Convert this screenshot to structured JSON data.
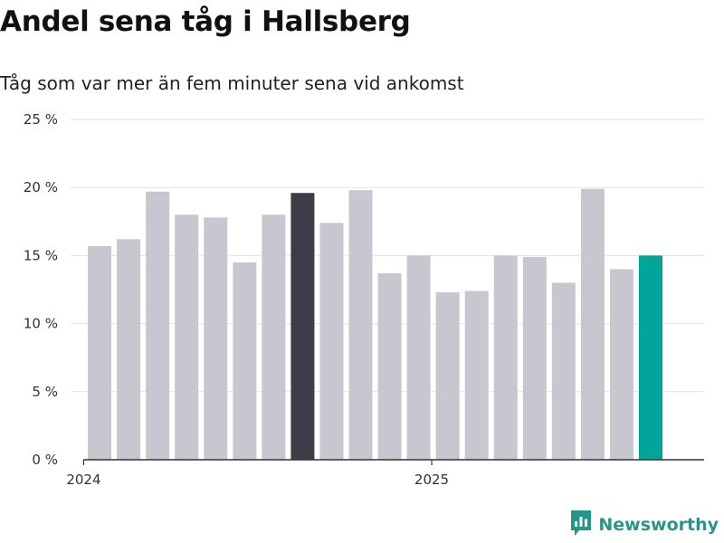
{
  "header": {
    "title": "Andel sena tåg i Hallsberg",
    "subtitle": "Tåg som var mer än fem minuter sena vid ankomst"
  },
  "brand": {
    "name": "Newsworthy",
    "icon": "newsworthy-logo-icon",
    "color": "#26968a"
  },
  "colors": {
    "default_bar": "#c8c7cf",
    "highlight_bar": "#3e3d47",
    "latest_bar": "#00a59a",
    "grid": "#e2e2e2",
    "axis": "#333333"
  },
  "chart_data": {
    "type": "bar",
    "title": "Andel sena tåg i Hallsberg",
    "subtitle": "Tåg som var mer än fem minuter sena vid ankomst",
    "xlabel": "",
    "ylabel": "",
    "ylim": [
      0,
      25
    ],
    "yticks": [
      0,
      5,
      10,
      15,
      20,
      25
    ],
    "ytick_labels": [
      "0 %",
      "5 %",
      "10 %",
      "15 %",
      "20 %",
      "25 %"
    ],
    "grid": true,
    "legend": "none",
    "categories": [
      "2024-01",
      "2024-02",
      "2024-03",
      "2024-04",
      "2024-05",
      "2024-06",
      "2024-07",
      "2024-08",
      "2024-09",
      "2024-10",
      "2024-11",
      "2024-12",
      "2025-01",
      "2025-02",
      "2025-03",
      "2025-04",
      "2025-05",
      "2025-06",
      "2025-07",
      "2025-08",
      "2025-09"
    ],
    "values": [
      15.7,
      16.2,
      19.7,
      18.0,
      17.8,
      14.5,
      18.0,
      19.6,
      17.4,
      19.8,
      13.7,
      15.0,
      12.3,
      12.4,
      15.0,
      14.9,
      13.0,
      19.9,
      14.0,
      15.0,
      null
    ],
    "highlight": {
      "2024-08": "dark",
      "2025-08": "accent"
    },
    "xtick_labels": [
      {
        "category": "2024-01",
        "label": "2024"
      },
      {
        "category": "2025-01",
        "label": "2025"
      }
    ]
  }
}
